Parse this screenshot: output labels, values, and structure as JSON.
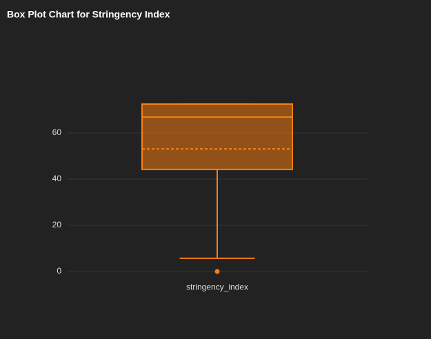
{
  "chart_data": {
    "type": "box",
    "title": "Box Plot Chart for Stringency Index",
    "categories": [
      "stringency_index"
    ],
    "boxes": [
      {
        "lowerfence": 5.7,
        "q1": 44.2,
        "median": 66.9,
        "q3": 72.5,
        "upperfence": 72.5,
        "mean": 53.1,
        "outliers": [
          0
        ]
      }
    ],
    "color": "#ff7f0e",
    "ylim": [
      -2.8,
      75.5
    ],
    "yticks": [
      0,
      20,
      40,
      60
    ],
    "grid": true
  }
}
